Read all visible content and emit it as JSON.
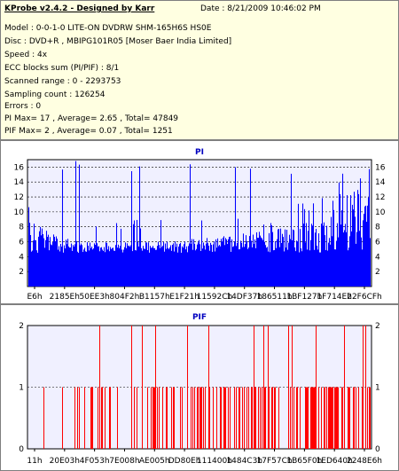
{
  "info": {
    "title": "KProbe v2.4.2 - Designed by Karr",
    "date": "Date : 8/21/2009 10:46:02 PM",
    "lines": [
      "Model : 0-0-1-0 LITE-ON DVDRW SHM-165H6S HS0E",
      "Disc : DVD+R , MBIPG101R05 [Moser Baer India Limited]",
      "Speed : 4x",
      "ECC blocks sum (PI/PIF) : 8/1",
      "Scanned range : 0 - 2293753",
      "Sampling count : 126254",
      "Errors : 0",
      "PI Max= 17 , Average= 2.65 , Total= 47849",
      "PIF Max= 2 , Average= 0.07 , Total= 1251"
    ]
  },
  "chart_data": [
    {
      "type": "bar",
      "title": "PI",
      "ylim": [
        0,
        17
      ],
      "yticks": [
        2,
        4,
        6,
        8,
        10,
        12,
        14,
        16
      ],
      "xtick_labels": [
        "E6h",
        "2185Eh",
        "50EE3h",
        "804F2h",
        "B1157h",
        "E1F21h",
        "11592Ch",
        "14DF37h",
        "186511h",
        "1BF127h",
        "1F714Eh",
        "22F6CFh"
      ],
      "x_range": [
        0,
        2293753
      ],
      "max": 17,
      "average": 2.65,
      "series_color": "#0000ff",
      "profile": {
        "points_x_fraction": [
          0,
          0.1,
          0.2,
          0.3,
          0.4,
          0.5,
          0.6,
          0.7,
          0.8,
          0.85,
          0.9,
          0.95,
          1.0
        ],
        "typical_peak": [
          9,
          6.5,
          6,
          6,
          6,
          6.5,
          7,
          7.5,
          8.5,
          10,
          12,
          13,
          13
        ]
      }
    },
    {
      "type": "bar",
      "title": "PIF",
      "ylim": [
        0,
        2
      ],
      "yticks": [
        0,
        1,
        2
      ],
      "xtick_labels": [
        "11h",
        "20E03h",
        "4F053h",
        "7E008h",
        "AE005h",
        "DD80Eh",
        "111400h",
        "1484C3h",
        "17F57Ch",
        "1B65F0h",
        "1ED640h",
        "2248E6h"
      ],
      "x_range": [
        0,
        2293753
      ],
      "max": 2,
      "average": 0.07,
      "series_color": "#ff0000"
    }
  ]
}
